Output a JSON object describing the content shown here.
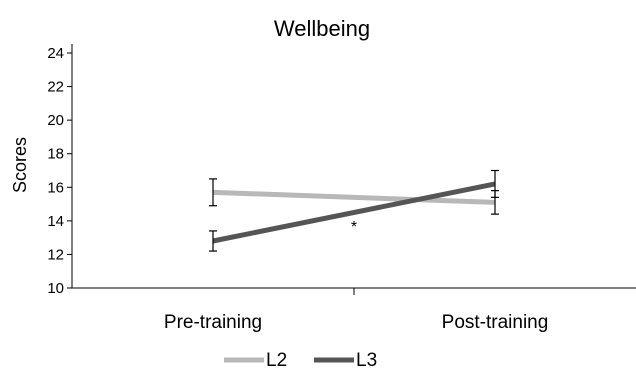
{
  "chart_data": {
    "type": "line",
    "title": "Wellbeing",
    "xlabel": "",
    "ylabel": "Scores",
    "categories": [
      "Pre-training",
      "Post-training"
    ],
    "ylim": [
      10,
      24
    ],
    "yticks": [
      10,
      12,
      14,
      16,
      18,
      20,
      22,
      24
    ],
    "grid": false,
    "legend_position": "bottom-center",
    "series": [
      {
        "name": "L2",
        "color": "#b8b8b8",
        "values": [
          15.7,
          15.1
        ],
        "error": [
          0.8,
          0.7
        ]
      },
      {
        "name": "L3",
        "color": "#555555",
        "values": [
          12.8,
          16.2
        ],
        "error": [
          0.6,
          0.8
        ]
      }
    ],
    "annotations": [
      {
        "text": "*",
        "x_between": [
          0,
          1
        ],
        "y": 13.8
      }
    ]
  }
}
